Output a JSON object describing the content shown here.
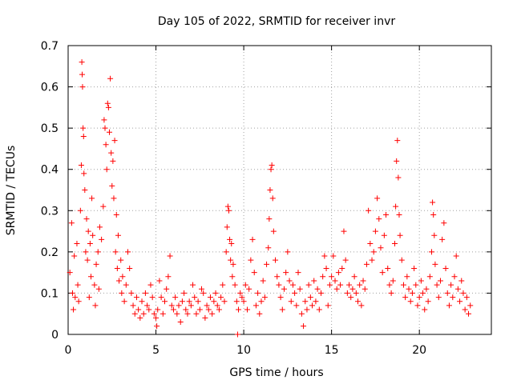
{
  "chart_data": {
    "type": "scatter",
    "title": "Day 105 of 2022, SRMTID for receiver invr",
    "xlabel": "GPS time / hours",
    "ylabel": "SRMTID / TECUs",
    "xlim": [
      0,
      24.1
    ],
    "ylim": [
      0,
      0.7
    ],
    "xticks": [
      0,
      5,
      10,
      15,
      20
    ],
    "xtick_labels": [
      "0",
      "5",
      "10",
      "15",
      "20"
    ],
    "yticks": [
      0,
      0.1,
      0.2,
      0.3,
      0.4,
      0.5,
      0.6,
      0.7
    ],
    "ytick_labels": [
      "0",
      "0.1",
      "0.2",
      "0.3",
      "0.4",
      "0.5",
      "0.6",
      "0.7"
    ],
    "grid": true,
    "marker": "+",
    "color": "#ff0000",
    "series": [
      {
        "name": "SRMTID",
        "points": [
          [
            0.1,
            0.15
          ],
          [
            0.2,
            0.27
          ],
          [
            0.25,
            0.1
          ],
          [
            0.3,
            0.06
          ],
          [
            0.35,
            0.19
          ],
          [
            0.4,
            0.09
          ],
          [
            0.5,
            0.22
          ],
          [
            0.55,
            0.12
          ],
          [
            0.6,
            0.08
          ],
          [
            0.7,
            0.3
          ],
          [
            0.75,
            0.41
          ],
          [
            0.78,
            0.66
          ],
          [
            0.8,
            0.63
          ],
          [
            0.82,
            0.6
          ],
          [
            0.85,
            0.5
          ],
          [
            0.88,
            0.48
          ],
          [
            0.9,
            0.39
          ],
          [
            0.95,
            0.35
          ],
          [
            1.0,
            0.2
          ],
          [
            1.05,
            0.28
          ],
          [
            1.1,
            0.18
          ],
          [
            1.15,
            0.25
          ],
          [
            1.2,
            0.09
          ],
          [
            1.25,
            0.22
          ],
          [
            1.3,
            0.14
          ],
          [
            1.35,
            0.33
          ],
          [
            1.4,
            0.24
          ],
          [
            1.5,
            0.12
          ],
          [
            1.55,
            0.07
          ],
          [
            1.6,
            0.17
          ],
          [
            1.7,
            0.2
          ],
          [
            1.75,
            0.11
          ],
          [
            1.8,
            0.26
          ],
          [
            1.9,
            0.23
          ],
          [
            2.0,
            0.31
          ],
          [
            2.05,
            0.52
          ],
          [
            2.1,
            0.5
          ],
          [
            2.15,
            0.46
          ],
          [
            2.2,
            0.4
          ],
          [
            2.25,
            0.56
          ],
          [
            2.3,
            0.55
          ],
          [
            2.35,
            0.49
          ],
          [
            2.4,
            0.62
          ],
          [
            2.45,
            0.44
          ],
          [
            2.5,
            0.36
          ],
          [
            2.55,
            0.42
          ],
          [
            2.6,
            0.33
          ],
          [
            2.65,
            0.47
          ],
          [
            2.7,
            0.2
          ],
          [
            2.75,
            0.29
          ],
          [
            2.8,
            0.16
          ],
          [
            2.85,
            0.24
          ],
          [
            2.9,
            0.13
          ],
          [
            3.0,
            0.18
          ],
          [
            3.05,
            0.1
          ],
          [
            3.1,
            0.14
          ],
          [
            3.2,
            0.08
          ],
          [
            3.3,
            0.12
          ],
          [
            3.4,
            0.2
          ],
          [
            3.5,
            0.16
          ],
          [
            3.6,
            0.1
          ],
          [
            3.7,
            0.07
          ],
          [
            3.8,
            0.05
          ],
          [
            3.9,
            0.09
          ],
          [
            4.0,
            0.06
          ],
          [
            4.1,
            0.04
          ],
          [
            4.2,
            0.08
          ],
          [
            4.3,
            0.05
          ],
          [
            4.4,
            0.1
          ],
          [
            4.5,
            0.07
          ],
          [
            4.6,
            0.06
          ],
          [
            4.7,
            0.12
          ],
          [
            4.8,
            0.09
          ],
          [
            4.9,
            0.05
          ],
          [
            5.0,
            0.04
          ],
          [
            5.05,
            0.02
          ],
          [
            5.1,
            0.06
          ],
          [
            5.2,
            0.13
          ],
          [
            5.3,
            0.09
          ],
          [
            5.4,
            0.05
          ],
          [
            5.5,
            0.08
          ],
          [
            5.6,
            0.11
          ],
          [
            5.7,
            0.14
          ],
          [
            5.8,
            0.19
          ],
          [
            5.9,
            0.07
          ],
          [
            6.0,
            0.06
          ],
          [
            6.1,
            0.09
          ],
          [
            6.2,
            0.05
          ],
          [
            6.3,
            0.07
          ],
          [
            6.4,
            0.03
          ],
          [
            6.5,
            0.08
          ],
          [
            6.6,
            0.1
          ],
          [
            6.7,
            0.06
          ],
          [
            6.8,
            0.05
          ],
          [
            6.9,
            0.08
          ],
          [
            7.0,
            0.07
          ],
          [
            7.1,
            0.12
          ],
          [
            7.2,
            0.09
          ],
          [
            7.3,
            0.05
          ],
          [
            7.4,
            0.08
          ],
          [
            7.5,
            0.06
          ],
          [
            7.6,
            0.11
          ],
          [
            7.7,
            0.1
          ],
          [
            7.8,
            0.04
          ],
          [
            7.9,
            0.07
          ],
          [
            8.0,
            0.06
          ],
          [
            8.1,
            0.09
          ],
          [
            8.2,
            0.05
          ],
          [
            8.3,
            0.08
          ],
          [
            8.4,
            0.1
          ],
          [
            8.5,
            0.07
          ],
          [
            8.6,
            0.06
          ],
          [
            8.7,
            0.09
          ],
          [
            8.8,
            0.12
          ],
          [
            8.9,
            0.08
          ],
          [
            9.0,
            0.2
          ],
          [
            9.05,
            0.26
          ],
          [
            9.1,
            0.31
          ],
          [
            9.15,
            0.3
          ],
          [
            9.2,
            0.23
          ],
          [
            9.25,
            0.18
          ],
          [
            9.3,
            0.22
          ],
          [
            9.35,
            0.14
          ],
          [
            9.4,
            0.17
          ],
          [
            9.5,
            0.12
          ],
          [
            9.6,
            0.08
          ],
          [
            9.65,
            0.0
          ],
          [
            9.7,
            0.06
          ],
          [
            9.8,
            0.1
          ],
          [
            9.9,
            0.09
          ],
          [
            10.0,
            0.08
          ],
          [
            10.1,
            0.12
          ],
          [
            10.2,
            0.06
          ],
          [
            10.3,
            0.11
          ],
          [
            10.4,
            0.18
          ],
          [
            10.5,
            0.23
          ],
          [
            10.6,
            0.15
          ],
          [
            10.7,
            0.07
          ],
          [
            10.8,
            0.1
          ],
          [
            10.9,
            0.05
          ],
          [
            11.0,
            0.08
          ],
          [
            11.1,
            0.13
          ],
          [
            11.2,
            0.09
          ],
          [
            11.3,
            0.17
          ],
          [
            11.4,
            0.21
          ],
          [
            11.45,
            0.28
          ],
          [
            11.5,
            0.35
          ],
          [
            11.55,
            0.4
          ],
          [
            11.6,
            0.41
          ],
          [
            11.65,
            0.33
          ],
          [
            11.7,
            0.25
          ],
          [
            11.8,
            0.18
          ],
          [
            11.9,
            0.14
          ],
          [
            12.0,
            0.12
          ],
          [
            12.1,
            0.09
          ],
          [
            12.2,
            0.06
          ],
          [
            12.3,
            0.11
          ],
          [
            12.4,
            0.15
          ],
          [
            12.5,
            0.2
          ],
          [
            12.6,
            0.13
          ],
          [
            12.7,
            0.08
          ],
          [
            12.8,
            0.12
          ],
          [
            12.9,
            0.1
          ],
          [
            13.0,
            0.07
          ],
          [
            13.1,
            0.15
          ],
          [
            13.2,
            0.11
          ],
          [
            13.3,
            0.05
          ],
          [
            13.4,
            0.02
          ],
          [
            13.5,
            0.08
          ],
          [
            13.6,
            0.06
          ],
          [
            13.7,
            0.12
          ],
          [
            13.8,
            0.09
          ],
          [
            13.9,
            0.07
          ],
          [
            14.0,
            0.13
          ],
          [
            14.1,
            0.08
          ],
          [
            14.2,
            0.11
          ],
          [
            14.3,
            0.06
          ],
          [
            14.4,
            0.1
          ],
          [
            14.5,
            0.14
          ],
          [
            14.6,
            0.19
          ],
          [
            14.7,
            0.16
          ],
          [
            14.8,
            0.07
          ],
          [
            14.9,
            0.12
          ],
          [
            15.0,
            0.14
          ],
          [
            15.1,
            0.19
          ],
          [
            15.2,
            0.13
          ],
          [
            15.3,
            0.11
          ],
          [
            15.4,
            0.15
          ],
          [
            15.5,
            0.12
          ],
          [
            15.6,
            0.16
          ],
          [
            15.7,
            0.25
          ],
          [
            15.8,
            0.18
          ],
          [
            15.9,
            0.1
          ],
          [
            16.0,
            0.12
          ],
          [
            16.1,
            0.09
          ],
          [
            16.2,
            0.11
          ],
          [
            16.3,
            0.14
          ],
          [
            16.4,
            0.1
          ],
          [
            16.5,
            0.08
          ],
          [
            16.6,
            0.12
          ],
          [
            16.7,
            0.07
          ],
          [
            16.8,
            0.13
          ],
          [
            16.9,
            0.11
          ],
          [
            17.0,
            0.17
          ],
          [
            17.1,
            0.3
          ],
          [
            17.2,
            0.22
          ],
          [
            17.3,
            0.18
          ],
          [
            17.4,
            0.2
          ],
          [
            17.5,
            0.25
          ],
          [
            17.6,
            0.33
          ],
          [
            17.7,
            0.28
          ],
          [
            17.8,
            0.21
          ],
          [
            17.9,
            0.15
          ],
          [
            18.0,
            0.24
          ],
          [
            18.1,
            0.29
          ],
          [
            18.2,
            0.16
          ],
          [
            18.3,
            0.12
          ],
          [
            18.4,
            0.1
          ],
          [
            18.5,
            0.13
          ],
          [
            18.6,
            0.22
          ],
          [
            18.65,
            0.31
          ],
          [
            18.7,
            0.42
          ],
          [
            18.75,
            0.47
          ],
          [
            18.8,
            0.38
          ],
          [
            18.85,
            0.29
          ],
          [
            18.9,
            0.24
          ],
          [
            19.0,
            0.18
          ],
          [
            19.1,
            0.12
          ],
          [
            19.2,
            0.09
          ],
          [
            19.3,
            0.14
          ],
          [
            19.4,
            0.11
          ],
          [
            19.5,
            0.08
          ],
          [
            19.6,
            0.1
          ],
          [
            19.7,
            0.16
          ],
          [
            19.8,
            0.12
          ],
          [
            19.9,
            0.07
          ],
          [
            20.0,
            0.09
          ],
          [
            20.1,
            0.13
          ],
          [
            20.2,
            0.1
          ],
          [
            20.3,
            0.06
          ],
          [
            20.4,
            0.11
          ],
          [
            20.5,
            0.08
          ],
          [
            20.6,
            0.14
          ],
          [
            20.7,
            0.2
          ],
          [
            20.75,
            0.32
          ],
          [
            20.8,
            0.29
          ],
          [
            20.85,
            0.24
          ],
          [
            20.9,
            0.17
          ],
          [
            21.0,
            0.12
          ],
          [
            21.1,
            0.09
          ],
          [
            21.2,
            0.13
          ],
          [
            21.3,
            0.23
          ],
          [
            21.4,
            0.27
          ],
          [
            21.5,
            0.16
          ],
          [
            21.6,
            0.1
          ],
          [
            21.7,
            0.07
          ],
          [
            21.8,
            0.12
          ],
          [
            21.9,
            0.09
          ],
          [
            22.0,
            0.14
          ],
          [
            22.1,
            0.19
          ],
          [
            22.2,
            0.11
          ],
          [
            22.3,
            0.08
          ],
          [
            22.4,
            0.13
          ],
          [
            22.5,
            0.1
          ],
          [
            22.6,
            0.06
          ],
          [
            22.7,
            0.09
          ],
          [
            22.8,
            0.05
          ],
          [
            22.9,
            0.07
          ]
        ]
      }
    ]
  }
}
